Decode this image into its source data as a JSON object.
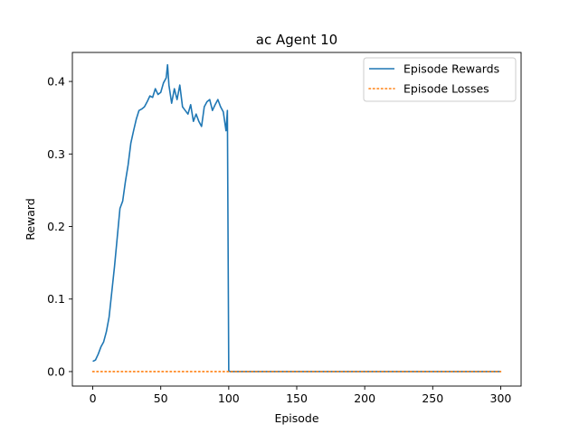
{
  "chart_data": {
    "type": "line",
    "title": "ac Agent 10",
    "xlabel": "Episode",
    "ylabel": "Reward",
    "xlim": [
      -15,
      315
    ],
    "ylim": [
      -0.02,
      0.44
    ],
    "xticks": [
      0,
      50,
      100,
      150,
      200,
      250,
      300
    ],
    "yticks": [
      0.0,
      0.1,
      0.2,
      0.3,
      0.4
    ],
    "ytick_labels": [
      "0.0",
      "0.1",
      "0.2",
      "0.3",
      "0.4"
    ],
    "grid": false,
    "legend_position": "top-right",
    "series": [
      {
        "name": "Episode Rewards",
        "color": "#1f77b4",
        "style": "solid",
        "x": [
          0,
          2,
          4,
          6,
          8,
          10,
          12,
          14,
          16,
          18,
          20,
          22,
          24,
          26,
          28,
          30,
          32,
          34,
          36,
          38,
          40,
          42,
          44,
          46,
          48,
          50,
          52,
          54,
          55,
          56,
          58,
          60,
          62,
          64,
          66,
          68,
          70,
          72,
          74,
          76,
          78,
          80,
          82,
          84,
          86,
          88,
          90,
          92,
          94,
          96,
          98,
          99,
          100,
          101,
          150,
          200,
          250,
          300
        ],
        "values": [
          0.014,
          0.016,
          0.024,
          0.034,
          0.041,
          0.055,
          0.075,
          0.11,
          0.145,
          0.185,
          0.225,
          0.235,
          0.262,
          0.285,
          0.315,
          0.332,
          0.348,
          0.36,
          0.362,
          0.365,
          0.372,
          0.38,
          0.378,
          0.39,
          0.382,
          0.385,
          0.398,
          0.405,
          0.423,
          0.395,
          0.37,
          0.39,
          0.375,
          0.395,
          0.365,
          0.36,
          0.355,
          0.368,
          0.345,
          0.355,
          0.345,
          0.338,
          0.365,
          0.372,
          0.375,
          0.36,
          0.368,
          0.375,
          0.365,
          0.358,
          0.332,
          0.36,
          0.001,
          0.0,
          0.0,
          0.0,
          0.0,
          0.0
        ]
      },
      {
        "name": "Episode Losses",
        "color": "#ff7f0e",
        "style": "dotted",
        "x": [
          0,
          300
        ],
        "values": [
          0.0,
          0.0
        ]
      }
    ]
  }
}
